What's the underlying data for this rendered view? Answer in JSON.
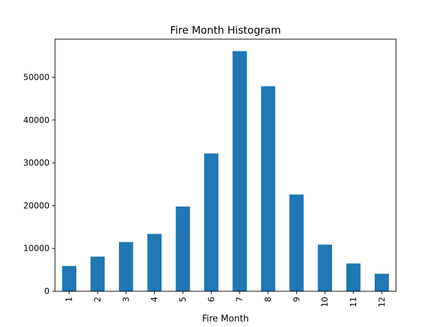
{
  "chart_data": {
    "type": "bar",
    "title": "Fire Month Histogram",
    "xlabel": "Fire Month",
    "ylabel": "",
    "categories": [
      "1",
      "2",
      "3",
      "4",
      "5",
      "6",
      "7",
      "8",
      "9",
      "10",
      "11",
      "12"
    ],
    "values": [
      5900,
      8100,
      11500,
      13400,
      19800,
      32200,
      56100,
      47900,
      22600,
      10900,
      6500,
      4100
    ],
    "ylim": [
      0,
      58900
    ],
    "yticks": [
      0,
      10000,
      20000,
      30000,
      40000,
      50000
    ],
    "grid": false,
    "legend": false,
    "bar_color": "#1f77b4"
  }
}
